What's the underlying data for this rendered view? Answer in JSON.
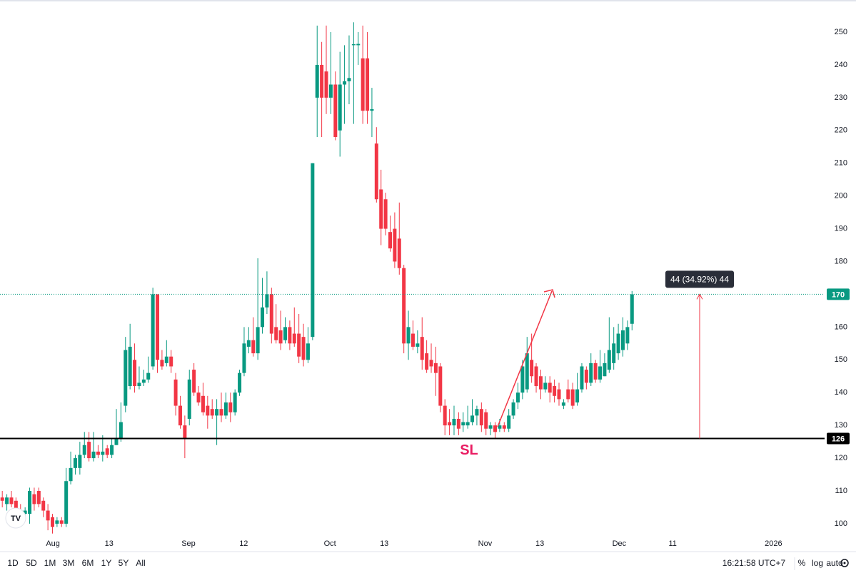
{
  "chart_data": {
    "type": "candlestick",
    "open": [
      108,
      106,
      108,
      107,
      104,
      103,
      103,
      109,
      110,
      107,
      104,
      102,
      100,
      101,
      100,
      113,
      117,
      117,
      121,
      125,
      120,
      122,
      121,
      123,
      121,
      124,
      126,
      136,
      142,
      150,
      142,
      143,
      144,
      148,
      170,
      150,
      149,
      151,
      144,
      136,
      130,
      132,
      147,
      140,
      139,
      136,
      135,
      133,
      135,
      133,
      137,
      134,
      140,
      146,
      154,
      156,
      152,
      160,
      166,
      170,
      160,
      159,
      156,
      160,
      158,
      158,
      157,
      150,
      157,
      230,
      240,
      238,
      230,
      234,
      220,
      234,
      235,
      246,
      246,
      242,
      242,
      226,
      216,
      202,
      199,
      189,
      190,
      187,
      178,
      155,
      158,
      154,
      157,
      152,
      150,
      149,
      148,
      136,
      131,
      130,
      132,
      130,
      130,
      131,
      133,
      135,
      134,
      129,
      130,
      129,
      130,
      129,
      133,
      137,
      140,
      141,
      150,
      148,
      145,
      141,
      143,
      142,
      141,
      136,
      141,
      141,
      137,
      141,
      147,
      143,
      149,
      144,
      145,
      147,
      149,
      152,
      153,
      155,
      161
    ],
    "high": [
      110,
      109,
      110,
      108,
      106,
      105,
      111,
      111,
      111,
      108,
      106,
      103,
      102,
      102,
      117,
      122,
      121,
      125,
      128,
      128,
      128,
      124,
      127,
      124,
      126,
      135,
      137,
      157,
      161,
      155,
      148,
      147,
      151,
      172,
      170,
      153,
      156,
      153,
      146,
      139,
      133,
      147,
      149,
      142,
      143,
      139,
      138,
      138,
      140,
      140,
      140,
      141,
      147,
      160,
      160,
      163,
      181,
      175,
      177,
      172,
      167,
      165,
      163,
      162,
      166,
      164,
      161,
      160,
      210,
      252,
      247,
      252,
      250,
      238,
      244,
      246,
      249,
      253,
      250,
      252,
      250,
      233,
      221,
      208,
      201,
      194,
      195,
      198,
      179,
      165,
      162,
      159,
      163,
      156,
      155,
      154,
      149,
      138,
      135,
      136,
      134,
      134,
      136,
      138,
      136,
      137,
      135,
      131,
      131,
      132,
      131,
      135,
      138,
      143,
      150,
      157,
      158,
      149,
      147,
      145,
      145,
      144,
      143,
      138,
      144,
      143,
      146,
      149,
      148,
      152,
      150,
      153,
      152,
      163,
      160,
      161,
      163,
      162,
      171
    ],
    "low": [
      105,
      104,
      105,
      102,
      101,
      102,
      100,
      104,
      105,
      102,
      98,
      97,
      99,
      99,
      99,
      112,
      115,
      115,
      120,
      119,
      119,
      120,
      119,
      120,
      120,
      124,
      125,
      134,
      141,
      140,
      141,
      142,
      143,
      147,
      146,
      147,
      148,
      146,
      133,
      129,
      120,
      130,
      139,
      136,
      133,
      129,
      132,
      124,
      131,
      132,
      131,
      133,
      139,
      145,
      152,
      151,
      150,
      158,
      164,
      155,
      155,
      153,
      155,
      153,
      154,
      149,
      148,
      149,
      156,
      218,
      218,
      225,
      225,
      217,
      212,
      222,
      228,
      222,
      240,
      222,
      222,
      218,
      198,
      185,
      188,
      183,
      178,
      176,
      152,
      150,
      153,
      152,
      147,
      146,
      146,
      139,
      134,
      127,
      127,
      127,
      127,
      128,
      129,
      130,
      130,
      128,
      127,
      127,
      126,
      128,
      128,
      128,
      132,
      135,
      138,
      140,
      143,
      140,
      138,
      140,
      137,
      137,
      136,
      135,
      137,
      135,
      136,
      140,
      141,
      142,
      143,
      143,
      145,
      146,
      147,
      150,
      151,
      153,
      159
    ],
    "close": [
      107,
      108,
      106,
      104,
      103,
      104,
      110,
      106,
      106,
      104,
      101,
      99,
      101,
      100,
      113,
      117,
      120,
      121,
      124,
      120,
      122,
      121,
      122,
      121,
      124,
      126,
      131,
      153,
      154,
      142,
      143,
      144,
      146,
      170,
      150,
      148,
      151,
      148,
      136,
      130,
      126,
      144,
      140,
      137,
      134,
      133,
      133,
      135,
      133,
      137,
      134,
      140,
      146,
      155,
      156,
      152,
      160,
      166,
      170,
      158,
      156,
      155,
      160,
      155,
      155,
      151,
      150,
      155,
      210,
      240,
      230,
      230,
      234,
      218,
      234,
      235,
      236,
      246.3,
      246.4,
      226,
      226,
      226.5,
      199,
      190,
      190,
      184,
      180,
      178,
      155,
      160,
      154,
      155,
      150,
      147,
      148,
      146,
      136,
      130,
      130,
      132,
      129,
      131,
      131,
      133,
      135,
      130,
      129,
      130,
      128,
      130,
      129,
      133,
      137,
      140,
      148,
      152,
      145,
      142,
      141,
      143,
      140,
      139,
      138,
      137,
      138,
      136,
      141,
      148,
      143,
      149,
      144,
      148,
      149,
      153,
      155,
      158,
      159,
      160,
      170
    ],
    "up_color": "#089981",
    "down_color": "#f23645",
    "xlim": [
      -0.5,
      180.2
    ],
    "ylim": [
      96.5,
      259.8
    ],
    "xticks": [
      {
        "value": 11.1,
        "label": "Aug"
      },
      {
        "value": 23.4,
        "label": "13"
      },
      {
        "value": 40.8,
        "label": "Sep"
      },
      {
        "value": 52.9,
        "label": "12"
      },
      {
        "value": 71.8,
        "label": "Oct"
      },
      {
        "value": 83.7,
        "label": "13"
      },
      {
        "value": 105.8,
        "label": "Nov"
      },
      {
        "value": 117.8,
        "label": "13"
      },
      {
        "value": 135.2,
        "label": "Dec"
      },
      {
        "value": 146.9,
        "label": "11"
      },
      {
        "value": 169.0,
        "label": "2026"
      }
    ],
    "yticks": [
      100,
      110,
      120,
      130,
      140,
      150,
      160,
      170,
      180,
      190,
      200,
      210,
      220,
      230,
      240,
      250
    ],
    "stop_level": 126,
    "stop_text": "SL",
    "measure_label": "44 (34.92%) 44"
  },
  "toolbar": {
    "ranges": [
      "1D",
      "5D",
      "1M",
      "3M",
      "6M",
      "1Y",
      "5Y",
      "All"
    ],
    "time": "16:21:58 UTC+7",
    "options": [
      "%",
      "log",
      "auto"
    ]
  }
}
